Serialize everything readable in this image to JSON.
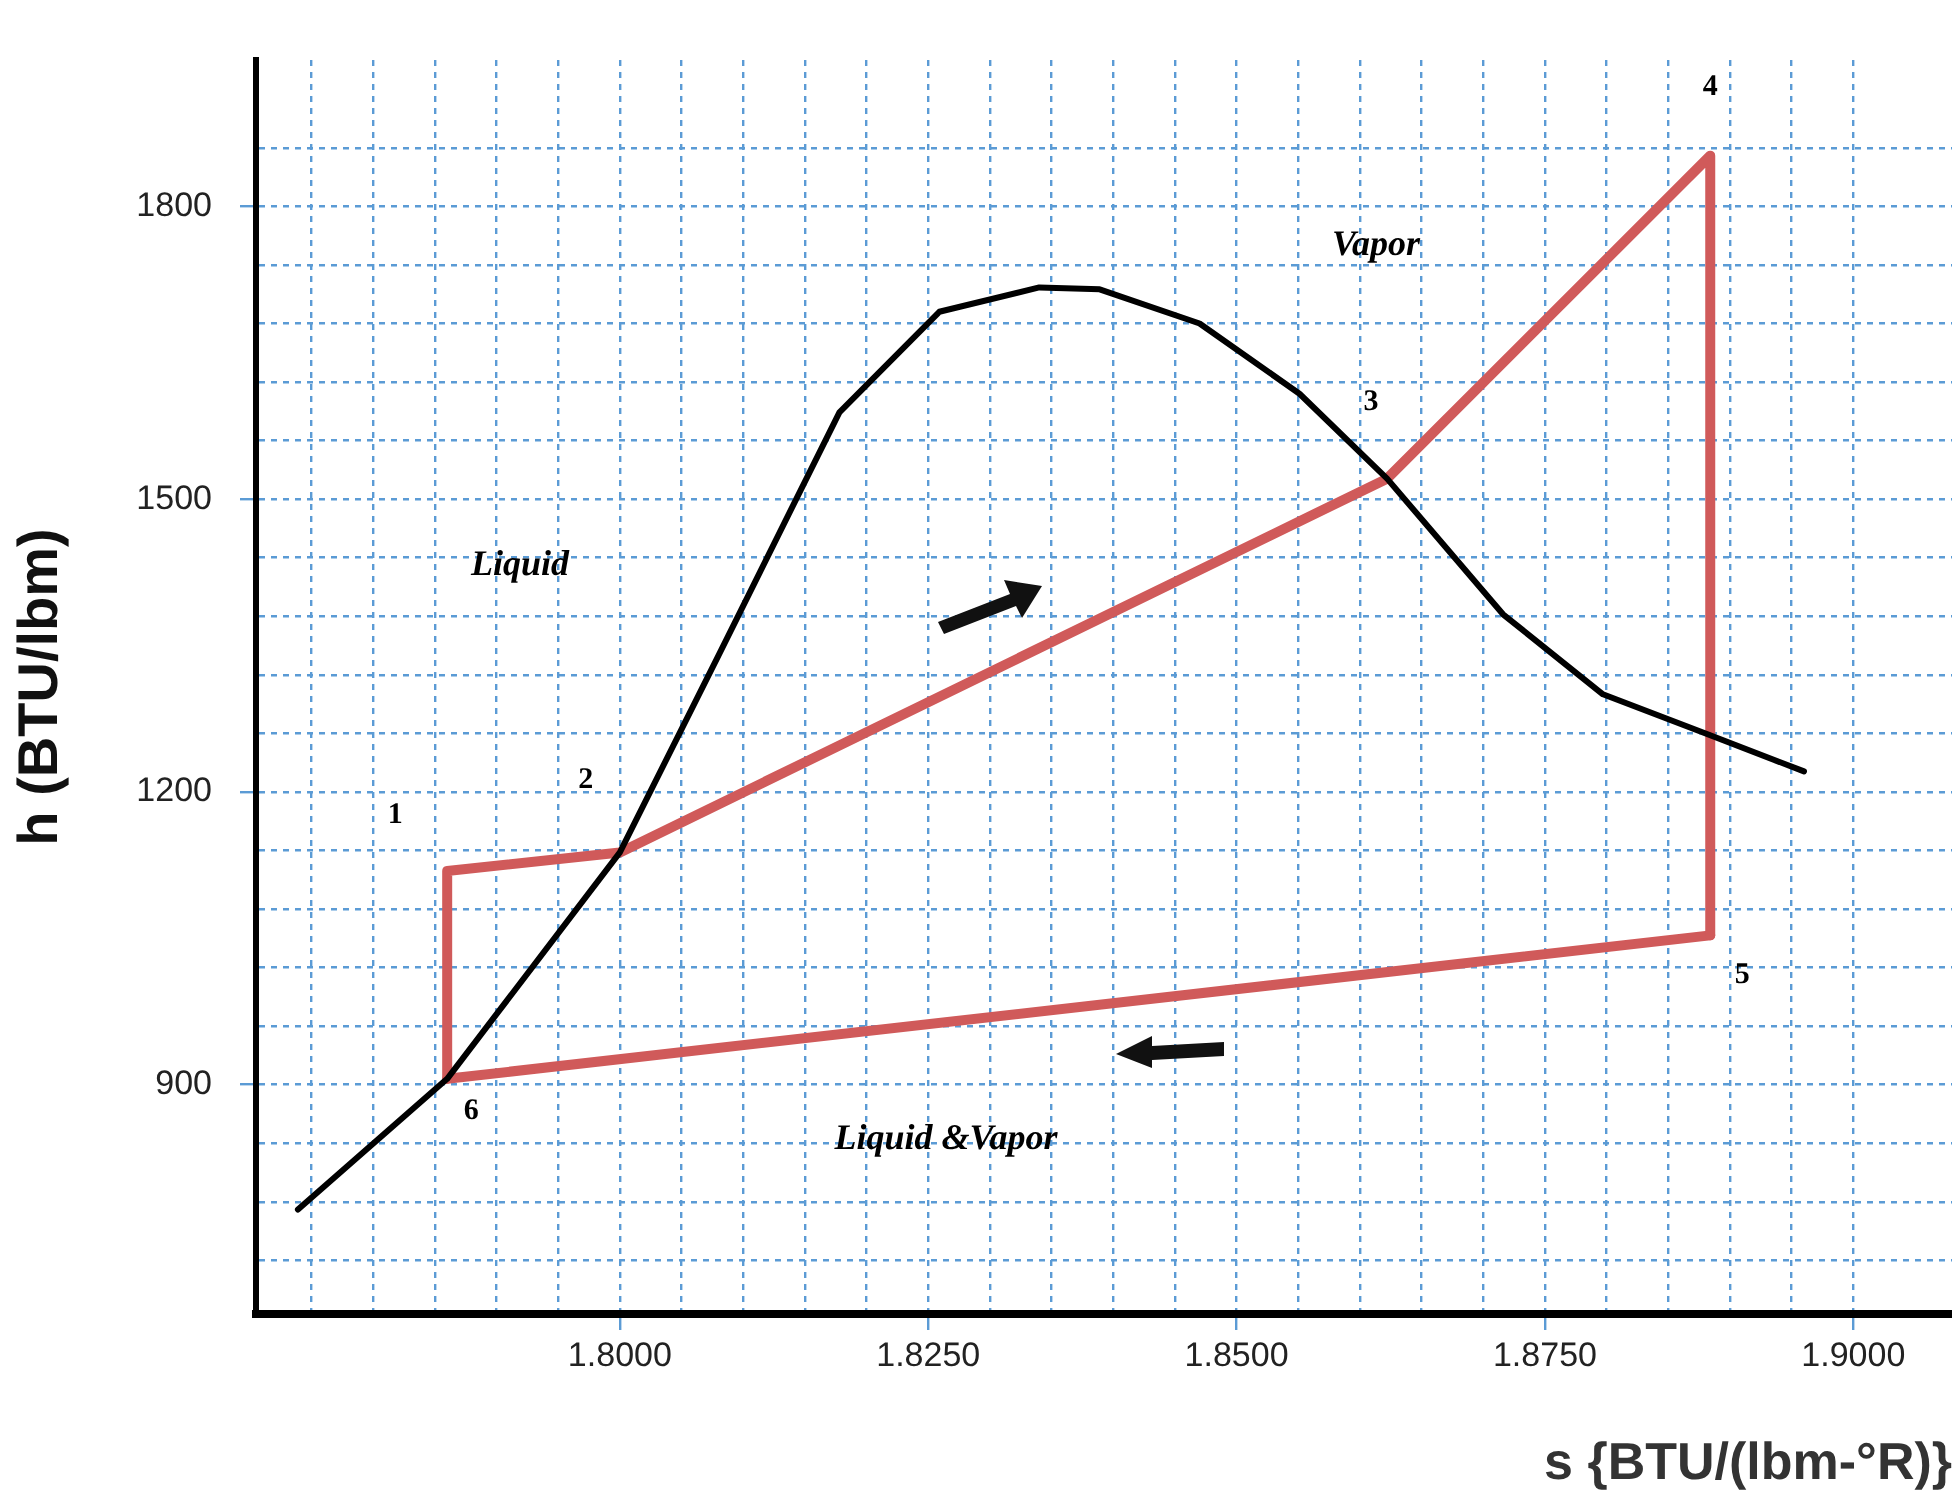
{
  "chart_data": {
    "type": "line",
    "xlabel": "s {BTU/(lbm-°R)}",
    "ylabel": "h (BTU/lbm)",
    "xlim": [
      1.7705,
      1.908
    ],
    "ylim": [
      665,
      1950
    ],
    "xticks": [
      {
        "value": 1.775,
        "label": null
      },
      {
        "value": 1.78,
        "label": null
      },
      {
        "value": 1.785,
        "label": null
      },
      {
        "value": 1.79,
        "label": null
      },
      {
        "value": 1.795,
        "label": null
      },
      {
        "value": 1.8,
        "label": "1.8000"
      },
      {
        "value": 1.805,
        "label": null
      },
      {
        "value": 1.81,
        "label": null
      },
      {
        "value": 1.815,
        "label": null
      },
      {
        "value": 1.82,
        "label": null
      },
      {
        "value": 1.825,
        "label": "1.8250"
      },
      {
        "value": 1.83,
        "label": null
      },
      {
        "value": 1.835,
        "label": null
      },
      {
        "value": 1.84,
        "label": null
      },
      {
        "value": 1.845,
        "label": null
      },
      {
        "value": 1.85,
        "label": "1.8500"
      },
      {
        "value": 1.855,
        "label": null
      },
      {
        "value": 1.86,
        "label": null
      },
      {
        "value": 1.865,
        "label": null
      },
      {
        "value": 1.87,
        "label": null
      },
      {
        "value": 1.875,
        "label": "1.8750"
      },
      {
        "value": 1.88,
        "label": null
      },
      {
        "value": 1.885,
        "label": null
      },
      {
        "value": 1.89,
        "label": null
      },
      {
        "value": 1.895,
        "label": null
      },
      {
        "value": 1.9,
        "label": "1.9000"
      }
    ],
    "yticks": [
      {
        "value": 720,
        "label": null
      },
      {
        "value": 780,
        "label": null
      },
      {
        "value": 840,
        "label": null
      },
      900,
      {
        "value": 960,
        "label": null
      },
      {
        "value": 1020,
        "label": null
      },
      {
        "value": 1080,
        "label": null
      },
      {
        "value": 1140,
        "label": null
      },
      1200,
      {
        "value": 1260,
        "label": null
      },
      {
        "value": 1320,
        "label": null
      },
      {
        "value": 1380,
        "label": null
      },
      {
        "value": 1440,
        "label": null
      },
      1500,
      {
        "value": 1560,
        "label": null
      },
      {
        "value": 1620,
        "label": null
      },
      {
        "value": 1680,
        "label": null
      },
      {
        "value": 1740,
        "label": null
      },
      1800,
      {
        "value": 1860,
        "label": null
      }
    ],
    "grid": true,
    "legend": false,
    "marker": "none",
    "line_style": "solid",
    "series": [
      {
        "type": "line",
        "color": "#000000",
        "x": [
          1.7739,
          1.786,
          1.8,
          1.808,
          1.8178,
          1.8259,
          1.834,
          1.8389,
          1.847,
          1.8551,
          1.8622,
          1.8716,
          1.8797,
          1.8884,
          1.896
        ],
        "values": [
          772,
          906,
          1138,
          1340,
          1589,
          1692,
          1717,
          1715,
          1680,
          1608,
          1521,
          1382,
          1300,
          1258,
          1221
        ]
      },
      {
        "type": "line",
        "color": "#d05a5a",
        "x": [
          1.786,
          1.786,
          1.8,
          1.8622,
          1.8884,
          1.8884
        ],
        "values": [
          906,
          1119,
          1138,
          1521,
          1852,
          1053
        ]
      },
      {
        "type": "line",
        "color": "#d05a5a",
        "x": [
          1.786,
          1.8884
        ],
        "values": [
          906,
          1053
        ]
      }
    ],
    "annotations": [
      {
        "text": "1",
        "x": 1.786,
        "y": 1119
      },
      {
        "text": "2",
        "x": 1.8,
        "y": 1138
      },
      {
        "text": "3",
        "x": 1.8622,
        "y": 1521
      },
      {
        "text": "4",
        "x": 1.8884,
        "y": 1852
      },
      {
        "text": "5",
        "x": 1.8884,
        "y": 1053
      },
      {
        "text": "6",
        "x": 1.786,
        "y": 906
      },
      "Vapor",
      "Liquid",
      "Liquid &Vapor"
    ]
  }
}
